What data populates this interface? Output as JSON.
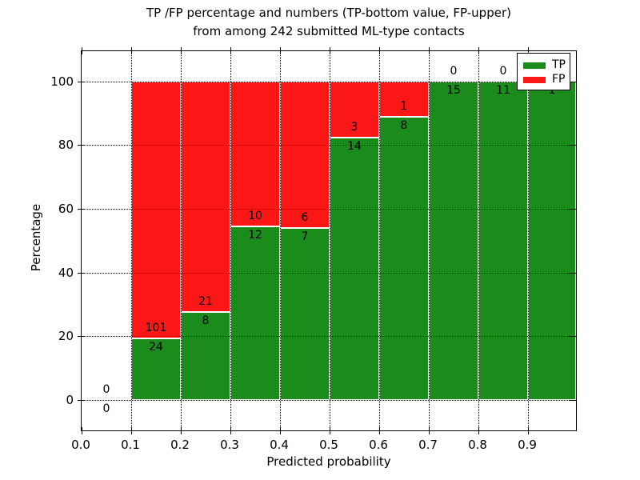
{
  "chart_data": {
    "type": "bar",
    "subtype": "stacked-percentage",
    "title_line1": "TP /FP percentage and numbers (TP-bottom value, FP-upper)",
    "title_line2": "from among 242 submitted ML-type contacts",
    "xlabel": "Predicted probability",
    "ylabel": "Percentage",
    "total_contacts_shown_in_title": 242,
    "xlim": [
      0.0,
      1.0
    ],
    "ylim": [
      -10,
      109.5
    ],
    "grid": "dotted",
    "legend_position": "upper right",
    "x_ticks": [
      "0.0",
      "0.1",
      "0.2",
      "0.3",
      "0.4",
      "0.5",
      "0.6",
      "0.7",
      "0.8",
      "0.9"
    ],
    "x_tick_values": [
      0.0,
      0.1,
      0.2,
      0.3,
      0.4,
      0.5,
      0.6,
      0.7,
      0.8,
      0.9
    ],
    "y_ticks": [
      "0",
      "20",
      "40",
      "60",
      "80",
      "100"
    ],
    "y_tick_values": [
      0,
      20,
      40,
      60,
      80,
      100
    ],
    "colors": {
      "tp": "#1b8c1b",
      "fp": "#fc1717"
    },
    "legend": {
      "items": [
        {
          "label": "TP",
          "color": "#1b8c1b"
        },
        {
          "label": "FP",
          "color": "#fc1717"
        }
      ]
    },
    "bins": [
      {
        "x0": 0.0,
        "x1": 0.1,
        "tp": 0,
        "fp": 0
      },
      {
        "x0": 0.1,
        "x1": 0.2,
        "tp": 24,
        "fp": 101
      },
      {
        "x0": 0.2,
        "x1": 0.3,
        "tp": 8,
        "fp": 21
      },
      {
        "x0": 0.3,
        "x1": 0.4,
        "tp": 12,
        "fp": 10
      },
      {
        "x0": 0.4,
        "x1": 0.5,
        "tp": 7,
        "fp": 6
      },
      {
        "x0": 0.5,
        "x1": 0.6,
        "tp": 14,
        "fp": 3
      },
      {
        "x0": 0.6,
        "x1": 0.7,
        "tp": 8,
        "fp": 1
      },
      {
        "x0": 0.7,
        "x1": 0.8,
        "tp": 15,
        "fp": 0
      },
      {
        "x0": 0.8,
        "x1": 0.9,
        "tp": 11,
        "fp": 0
      },
      {
        "x0": 0.9,
        "x1": 1.0,
        "tp": 1,
        "fp": 0
      }
    ]
  }
}
